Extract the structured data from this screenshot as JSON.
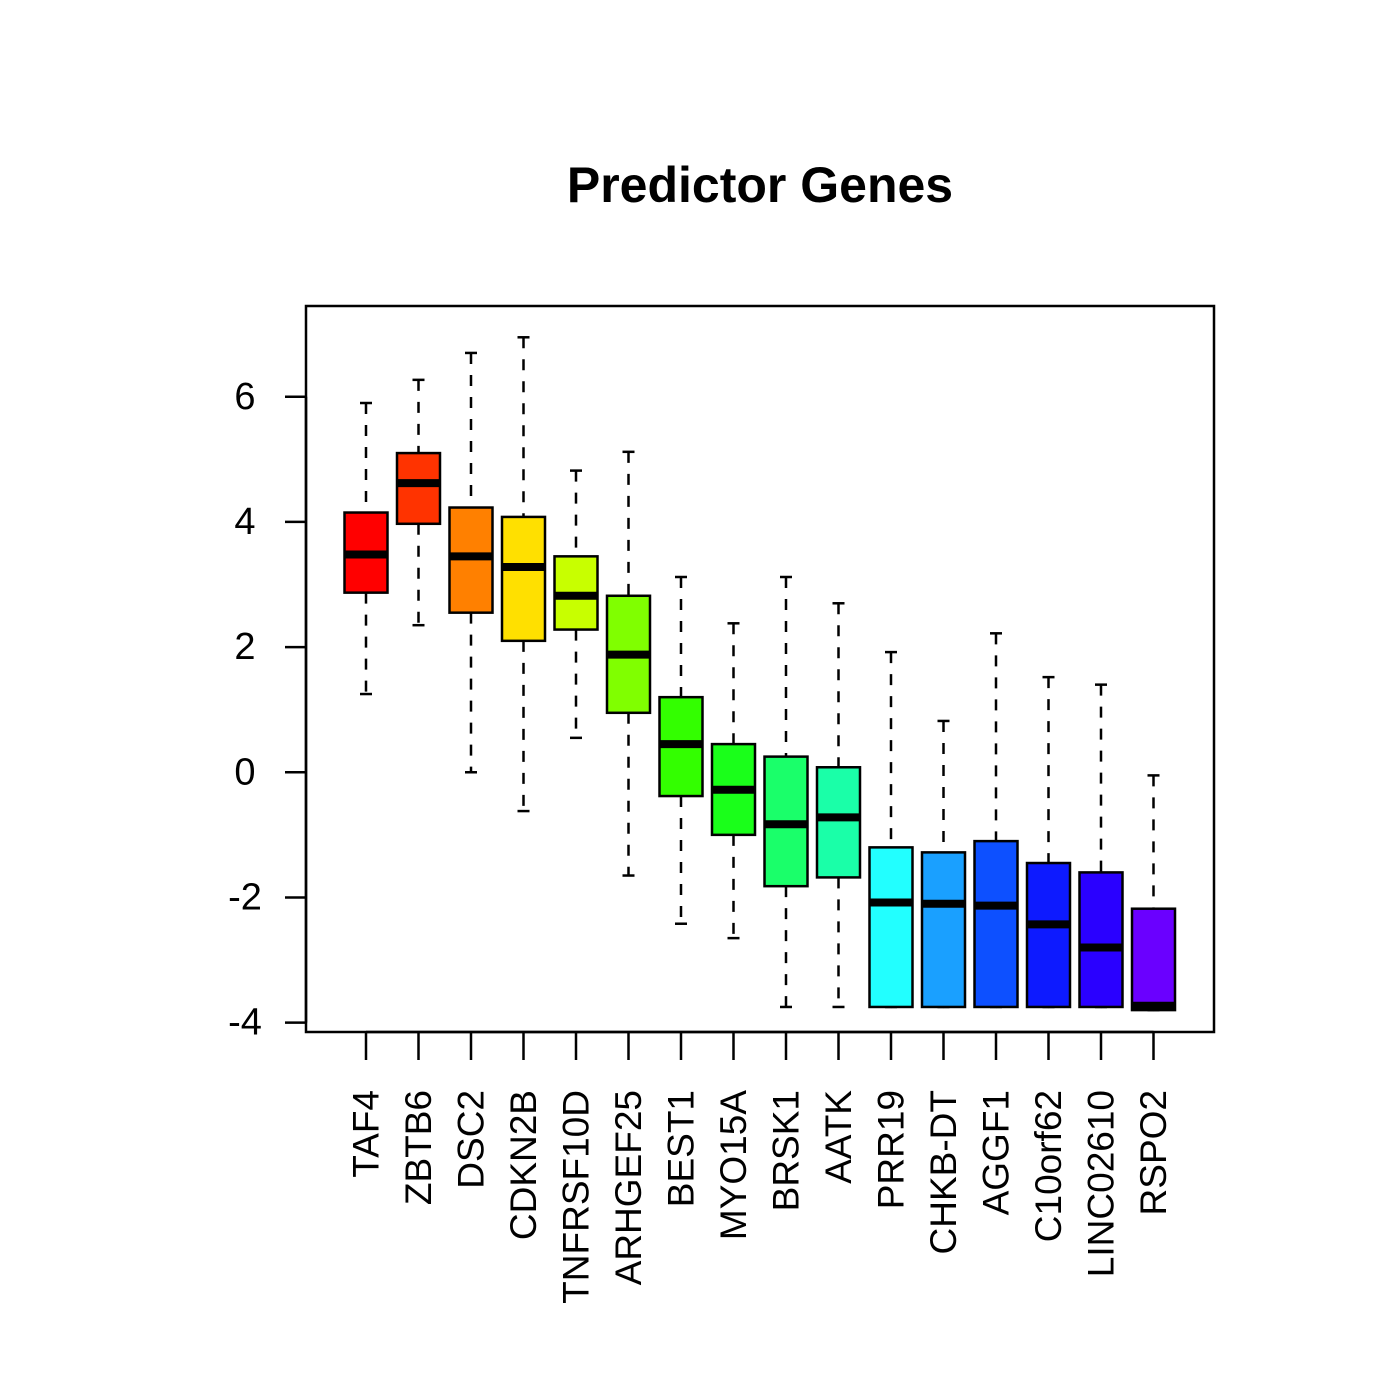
{
  "chart_data": {
    "type": "boxplot",
    "title": "Predictor Genes",
    "xlabel": "",
    "ylabel": "",
    "ylim": [
      -4.15,
      7.45
    ],
    "yticks": [
      "-4",
      "-2",
      "0",
      "2",
      "4",
      "6"
    ],
    "grid": false,
    "legend": "none",
    "categories": [
      "TAF4",
      "ZBTB6",
      "DSC2",
      "CDKN2B",
      "TNFRSF10D",
      "ARHGEF25",
      "BEST1",
      "MYO15A",
      "BRSK1",
      "AATK",
      "PRR19",
      "CHKB-DT",
      "AGGF1",
      "C10orf62",
      "LINC02610",
      "RSPO2"
    ],
    "series": [
      {
        "colors": [
          "#ff0000",
          "#ff3300",
          "#ff8000",
          "#ffe000",
          "#c8ff00",
          "#80ff00",
          "#33ff00",
          "#1aff1a",
          "#1aff6a",
          "#1affa8",
          "#22ffff",
          "#1aa0ff",
          "#0d50ff",
          "#0d1aff",
          "#2a00ff",
          "#6a00ff"
        ],
        "whisker_low": [
          1.25,
          2.35,
          0.0,
          -0.62,
          0.55,
          -1.65,
          -2.42,
          -2.65,
          -3.75,
          -3.75,
          -3.75,
          -3.75,
          -3.75,
          -3.75,
          -3.75,
          -3.8
        ],
        "q1": [
          2.87,
          3.97,
          2.55,
          2.1,
          2.28,
          0.95,
          -0.38,
          -1.0,
          -1.82,
          -1.68,
          -3.75,
          -3.75,
          -3.75,
          -3.75,
          -3.75,
          -3.8
        ],
        "median": [
          3.48,
          4.62,
          3.45,
          3.28,
          2.82,
          1.88,
          0.45,
          -0.28,
          -0.83,
          -0.72,
          -2.08,
          -2.1,
          -2.13,
          -2.43,
          -2.8,
          -3.73
        ],
        "q3": [
          4.15,
          5.1,
          4.23,
          4.08,
          3.45,
          2.82,
          1.2,
          0.45,
          0.25,
          0.08,
          -1.2,
          -1.28,
          -1.1,
          -1.45,
          -1.6,
          -2.18
        ],
        "whisker_high": [
          5.9,
          6.27,
          6.7,
          6.95,
          4.82,
          5.12,
          3.12,
          2.38,
          3.12,
          2.7,
          1.92,
          0.82,
          2.22,
          1.52,
          1.4,
          -0.05
        ]
      }
    ]
  }
}
